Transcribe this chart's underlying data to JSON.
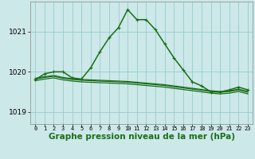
{
  "background_color": "#cce8e8",
  "grid_color": "#99cccc",
  "line_color": "#1a6e1a",
  "xlabel": "Graphe pression niveau de la mer (hPa)",
  "xlabel_fontsize": 7.5,
  "yticks": [
    1019,
    1020,
    1021
  ],
  "ylim": [
    1018.7,
    1021.75
  ],
  "xlim": [
    -0.5,
    23.5
  ],
  "xticks": [
    0,
    1,
    2,
    3,
    4,
    5,
    6,
    7,
    8,
    9,
    10,
    11,
    12,
    13,
    14,
    15,
    16,
    17,
    18,
    19,
    20,
    21,
    22,
    23
  ],
  "series": [
    {
      "x": [
        0,
        1,
        2,
        3,
        4,
        5,
        6,
        7,
        8,
        9,
        10,
        11,
        12,
        13,
        14,
        15,
        16,
        17,
        18,
        19,
        20,
        21,
        22,
        23
      ],
      "y": [
        1019.8,
        1019.95,
        1020.0,
        1020.0,
        1019.85,
        1019.82,
        1020.1,
        1020.5,
        1020.85,
        1021.1,
        1021.55,
        1021.3,
        1021.3,
        1021.05,
        1020.7,
        1020.35,
        1020.05,
        1019.75,
        1019.65,
        1019.5,
        1019.5,
        1019.55,
        1019.62,
        1019.55
      ],
      "lw": 1.1,
      "marker": "+"
    },
    {
      "x": [
        0,
        1,
        2,
        3,
        4,
        5,
        6,
        7,
        8,
        9,
        10,
        11,
        12,
        13,
        14,
        15,
        16,
        17,
        18,
        19,
        20,
        21,
        22,
        23
      ],
      "y": [
        1019.82,
        1019.86,
        1019.89,
        1019.84,
        1019.81,
        1019.79,
        1019.78,
        1019.77,
        1019.76,
        1019.75,
        1019.74,
        1019.72,
        1019.7,
        1019.68,
        1019.66,
        1019.63,
        1019.6,
        1019.57,
        1019.54,
        1019.51,
        1019.49,
        1019.51,
        1019.55,
        1019.49
      ],
      "lw": 0.9,
      "marker": null
    },
    {
      "x": [
        0,
        1,
        2,
        3,
        4,
        5,
        6,
        7,
        8,
        9,
        10,
        11,
        12,
        13,
        14,
        15,
        16,
        17,
        18,
        19,
        20,
        21,
        22,
        23
      ],
      "y": [
        1019.84,
        1019.88,
        1019.91,
        1019.86,
        1019.83,
        1019.81,
        1019.8,
        1019.79,
        1019.78,
        1019.77,
        1019.76,
        1019.74,
        1019.72,
        1019.7,
        1019.68,
        1019.65,
        1019.62,
        1019.59,
        1019.56,
        1019.53,
        1019.51,
        1019.53,
        1019.57,
        1019.51
      ],
      "lw": 0.9,
      "marker": null
    },
    {
      "x": [
        0,
        1,
        2,
        3,
        4,
        5,
        6,
        7,
        8,
        9,
        10,
        11,
        12,
        13,
        14,
        15,
        16,
        17,
        18,
        19,
        20,
        21,
        22,
        23
      ],
      "y": [
        1019.78,
        1019.82,
        1019.85,
        1019.8,
        1019.77,
        1019.75,
        1019.74,
        1019.73,
        1019.72,
        1019.71,
        1019.7,
        1019.68,
        1019.66,
        1019.64,
        1019.62,
        1019.59,
        1019.56,
        1019.53,
        1019.5,
        1019.47,
        1019.45,
        1019.47,
        1019.51,
        1019.45
      ],
      "lw": 0.9,
      "marker": null
    }
  ]
}
